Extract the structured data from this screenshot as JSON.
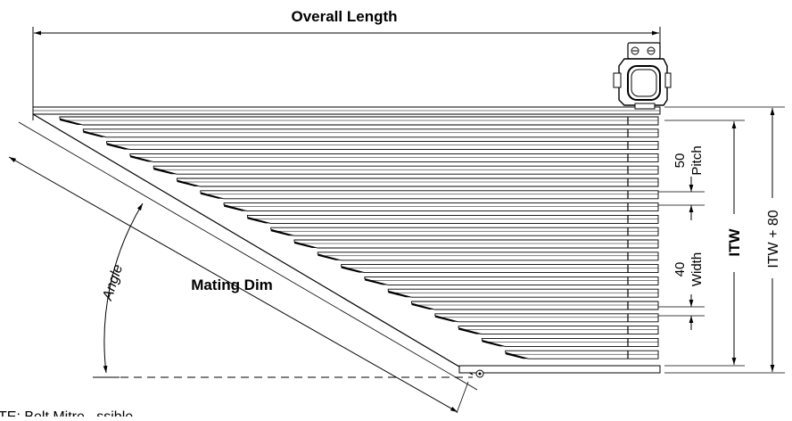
{
  "labels": {
    "overall_length": "Overall Length",
    "mating_dim": "Mating Dim",
    "angle": "Angle",
    "pitch_value": "50",
    "pitch_label": "Pitch",
    "width_value": "40",
    "width_label": "Width",
    "itw": "ITW",
    "itw_plus": "ITW + 80"
  },
  "note": "TE: Belt Mitre ..ssible"
}
